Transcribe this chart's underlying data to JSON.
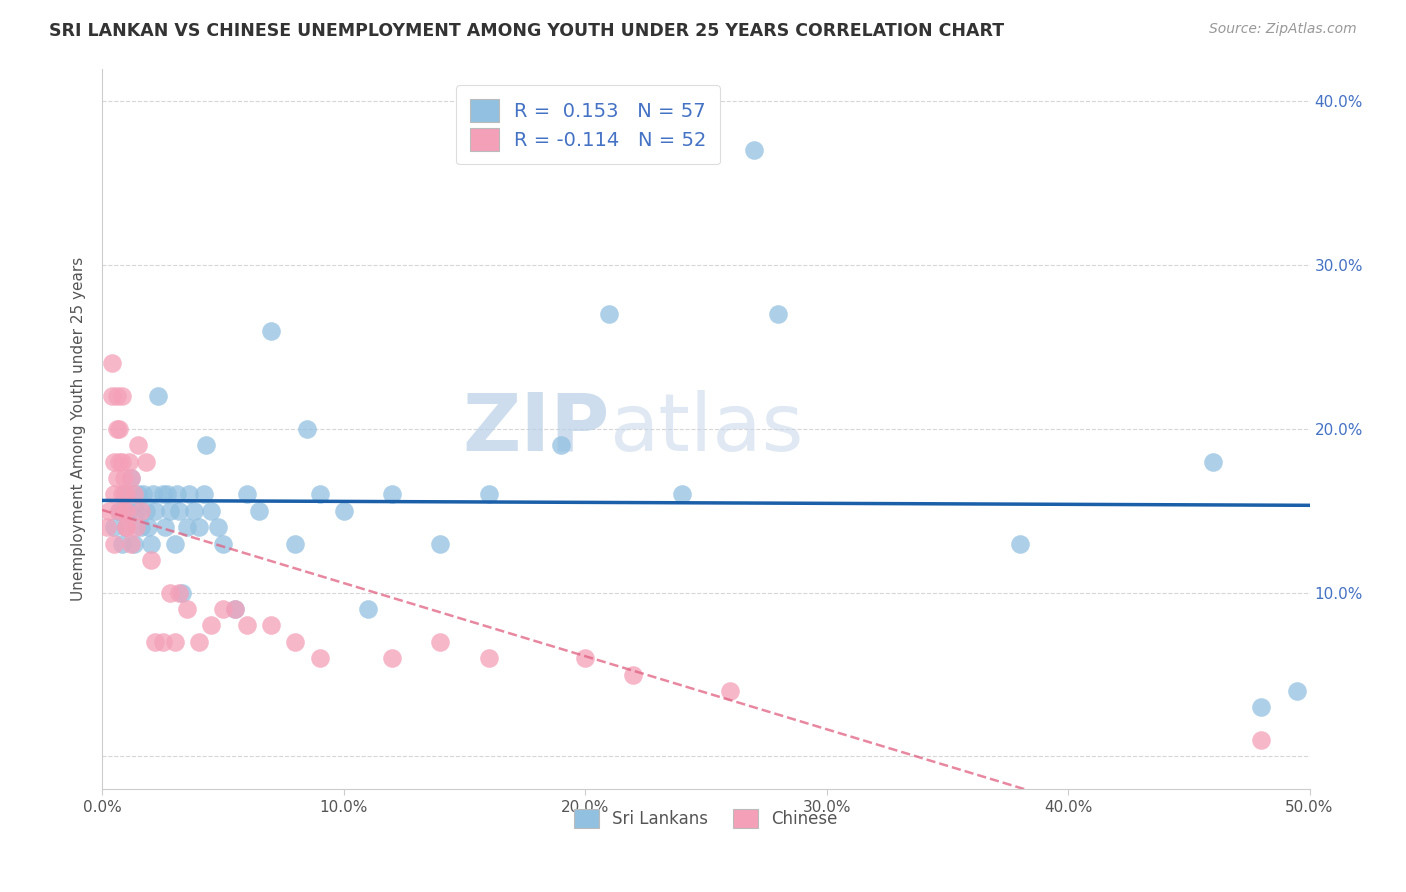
{
  "title": "SRI LANKAN VS CHINESE UNEMPLOYMENT AMONG YOUTH UNDER 25 YEARS CORRELATION CHART",
  "source": "Source: ZipAtlas.com",
  "ylabel": "Unemployment Among Youth under 25 years",
  "xlim": [
    0.0,
    0.5
  ],
  "ylim": [
    -0.02,
    0.42
  ],
  "xticks": [
    0.0,
    0.1,
    0.2,
    0.3,
    0.4,
    0.5
  ],
  "xtick_labels": [
    "0.0%",
    "10.0%",
    "20.0%",
    "30.0%",
    "40.0%",
    "50.0%"
  ],
  "yticks": [
    0.0,
    0.1,
    0.2,
    0.3,
    0.4
  ],
  "ytick_labels_right": [
    "",
    "10.0%",
    "20.0%",
    "30.0%",
    "40.0%"
  ],
  "sri_lankan_color": "#92c0e0",
  "chinese_color": "#f4a0b8",
  "sri_lankan_line_color": "#1a5fa8",
  "chinese_line_color": "#e06080",
  "watermark_zip": "ZIP",
  "watermark_atlas": "atlas",
  "legend_sri_r": "0.153",
  "legend_sri_n": "57",
  "legend_chi_r": "-0.114",
  "legend_chi_n": "52",
  "sri_lankans_x": [
    0.005,
    0.007,
    0.008,
    0.009,
    0.01,
    0.01,
    0.011,
    0.012,
    0.013,
    0.014,
    0.015,
    0.016,
    0.017,
    0.018,
    0.019,
    0.02,
    0.021,
    0.022,
    0.023,
    0.025,
    0.026,
    0.027,
    0.028,
    0.03,
    0.031,
    0.032,
    0.033,
    0.035,
    0.036,
    0.038,
    0.04,
    0.042,
    0.043,
    0.045,
    0.048,
    0.05,
    0.055,
    0.06,
    0.065,
    0.07,
    0.08,
    0.085,
    0.09,
    0.1,
    0.11,
    0.12,
    0.14,
    0.16,
    0.19,
    0.21,
    0.24,
    0.27,
    0.28,
    0.38,
    0.46,
    0.48,
    0.495
  ],
  "sri_lankans_y": [
    0.14,
    0.15,
    0.13,
    0.16,
    0.14,
    0.16,
    0.15,
    0.17,
    0.13,
    0.15,
    0.16,
    0.14,
    0.16,
    0.15,
    0.14,
    0.13,
    0.16,
    0.15,
    0.22,
    0.16,
    0.14,
    0.16,
    0.15,
    0.13,
    0.16,
    0.15,
    0.1,
    0.14,
    0.16,
    0.15,
    0.14,
    0.16,
    0.19,
    0.15,
    0.14,
    0.13,
    0.09,
    0.16,
    0.15,
    0.26,
    0.13,
    0.2,
    0.16,
    0.15,
    0.09,
    0.16,
    0.13,
    0.16,
    0.19,
    0.27,
    0.16,
    0.37,
    0.27,
    0.13,
    0.18,
    0.03,
    0.04
  ],
  "chinese_x": [
    0.002,
    0.003,
    0.004,
    0.004,
    0.005,
    0.005,
    0.005,
    0.006,
    0.006,
    0.006,
    0.007,
    0.007,
    0.007,
    0.008,
    0.008,
    0.008,
    0.009,
    0.009,
    0.01,
    0.01,
    0.01,
    0.01,
    0.011,
    0.012,
    0.012,
    0.013,
    0.014,
    0.015,
    0.016,
    0.018,
    0.02,
    0.022,
    0.025,
    0.028,
    0.03,
    0.032,
    0.035,
    0.04,
    0.045,
    0.05,
    0.055,
    0.06,
    0.07,
    0.08,
    0.09,
    0.12,
    0.14,
    0.16,
    0.2,
    0.22,
    0.26,
    0.48
  ],
  "chinese_y": [
    0.14,
    0.15,
    0.22,
    0.24,
    0.13,
    0.16,
    0.18,
    0.2,
    0.17,
    0.22,
    0.15,
    0.18,
    0.2,
    0.16,
    0.18,
    0.22,
    0.15,
    0.17,
    0.14,
    0.16,
    0.15,
    0.14,
    0.18,
    0.13,
    0.17,
    0.16,
    0.14,
    0.19,
    0.15,
    0.18,
    0.12,
    0.07,
    0.07,
    0.1,
    0.07,
    0.1,
    0.09,
    0.07,
    0.08,
    0.09,
    0.09,
    0.08,
    0.08,
    0.07,
    0.06,
    0.06,
    0.07,
    0.06,
    0.06,
    0.05,
    0.04,
    0.01
  ]
}
